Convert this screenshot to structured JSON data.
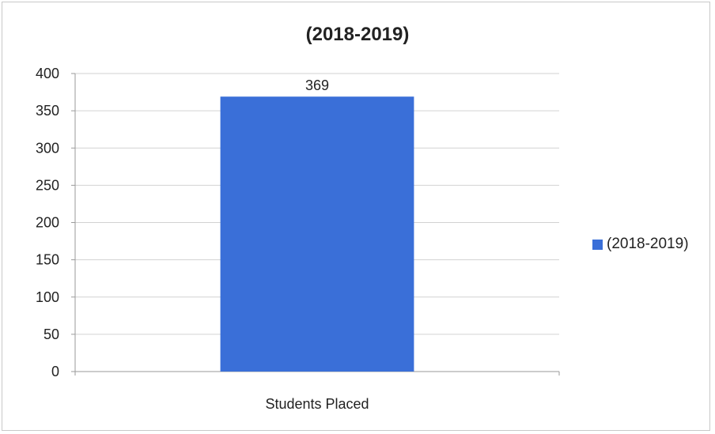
{
  "chart_data": {
    "type": "bar",
    "title": "(2018-2019)",
    "categories": [
      "Students Placed"
    ],
    "series": [
      {
        "name": "(2018-2019)",
        "values": [
          369
        ],
        "color": "#3a6fd8"
      }
    ],
    "ylim": [
      0,
      400
    ],
    "yticks": [
      0,
      50,
      100,
      150,
      200,
      250,
      300,
      350,
      400
    ],
    "data_labels": [
      "369"
    ],
    "grid": true,
    "legend_position": "right"
  }
}
